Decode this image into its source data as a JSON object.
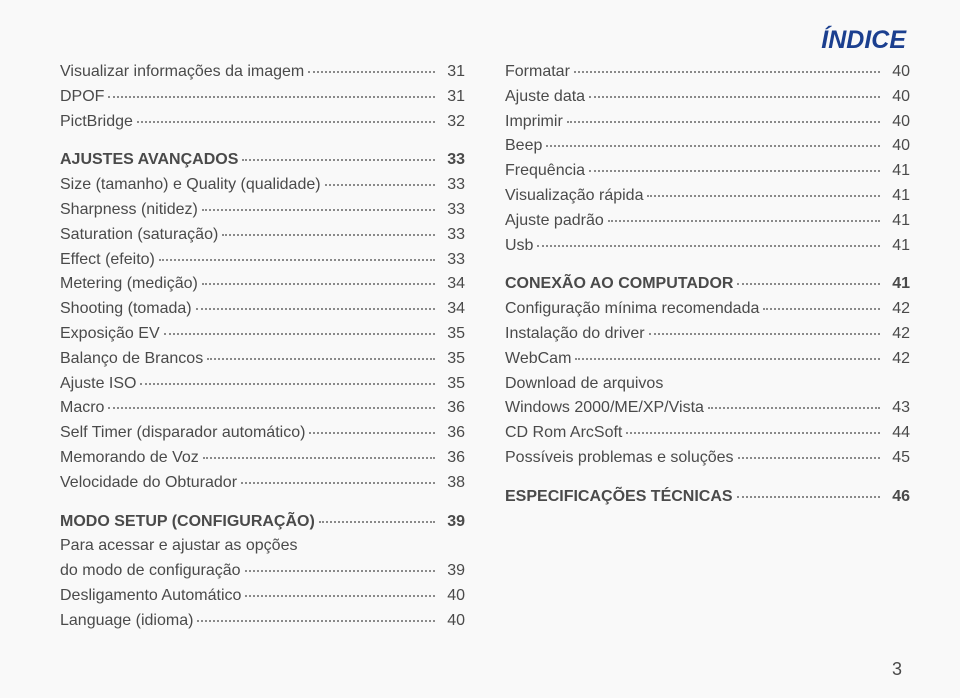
{
  "header": "ÍNDICE",
  "page_number": "3",
  "style": {
    "header_color": "#1b3f8f",
    "header_fontsize": 25,
    "text_color": "#4a4a4a",
    "body_fontsize": 16,
    "dot_color": "#8a8a8a",
    "background": "#f9f9f9"
  },
  "left": [
    {
      "label": "Visualizar informações da imagem",
      "page": "31"
    },
    {
      "label": "DPOF",
      "page": "31"
    },
    {
      "label": "PictBridge",
      "page": "32"
    },
    {
      "spacer": true
    },
    {
      "label": "AJUSTES AVANÇADOS",
      "page": "33",
      "bold": true
    },
    {
      "label": "Size (tamanho) e Quality (qualidade)",
      "page": "33"
    },
    {
      "label": "Sharpness (nitidez)",
      "page": "33"
    },
    {
      "label": "Saturation (saturação)",
      "page": "33"
    },
    {
      "label": "Effect (efeito)",
      "page": "33"
    },
    {
      "label": "Metering (medição)",
      "page": "34"
    },
    {
      "label": "Shooting (tomada)",
      "page": "34"
    },
    {
      "label": "Exposição EV",
      "page": "35"
    },
    {
      "label": "Balanço de Brancos",
      "page": "35"
    },
    {
      "label": "Ajuste ISO",
      "page": "35"
    },
    {
      "label": "Macro",
      "page": "36"
    },
    {
      "label": "Self Timer (disparador automático)",
      "page": "36"
    },
    {
      "label": "Memorando de Voz",
      "page": "36"
    },
    {
      "label": "Velocidade do Obturador",
      "page": "38"
    },
    {
      "spacer": true
    },
    {
      "label": "MODO SETUP (CONFIGURAÇÃO)",
      "page": "39",
      "bold": true
    },
    {
      "label": "Para acessar e ajustar as opções",
      "textonly": true
    },
    {
      "label": "do modo de configuração",
      "page": "39"
    },
    {
      "label": "Desligamento Automático",
      "page": "40"
    },
    {
      "label": "Language (idioma)",
      "page": "40"
    }
  ],
  "right": [
    {
      "label": "Formatar",
      "page": "40"
    },
    {
      "label": "Ajuste data",
      "page": "40"
    },
    {
      "label": "Imprimir",
      "page": "40"
    },
    {
      "label": "Beep",
      "page": "40"
    },
    {
      "label": "Frequência",
      "page": "41"
    },
    {
      "label": "Visualização rápida",
      "page": "41"
    },
    {
      "label": "Ajuste padrão",
      "page": "41"
    },
    {
      "label": "Usb",
      "page": "41"
    },
    {
      "spacer": true
    },
    {
      "label": "CONEXÃO AO COMPUTADOR",
      "page": "41",
      "bold": true
    },
    {
      "label": "Configuração mínima recomendada",
      "page": "42"
    },
    {
      "label": "Instalação do driver",
      "page": "42"
    },
    {
      "label": "WebCam",
      "page": "42"
    },
    {
      "label": "Download de arquivos",
      "textonly": true
    },
    {
      "label": "Windows 2000/ME/XP/Vista",
      "page": "43"
    },
    {
      "label": "CD Rom ArcSoft",
      "page": "44"
    },
    {
      "label": "Possíveis problemas e soluções",
      "page": "45"
    },
    {
      "spacer": true
    },
    {
      "label": "ESPECIFICAÇÕES TÉCNICAS",
      "page": "46",
      "bold": true
    }
  ]
}
